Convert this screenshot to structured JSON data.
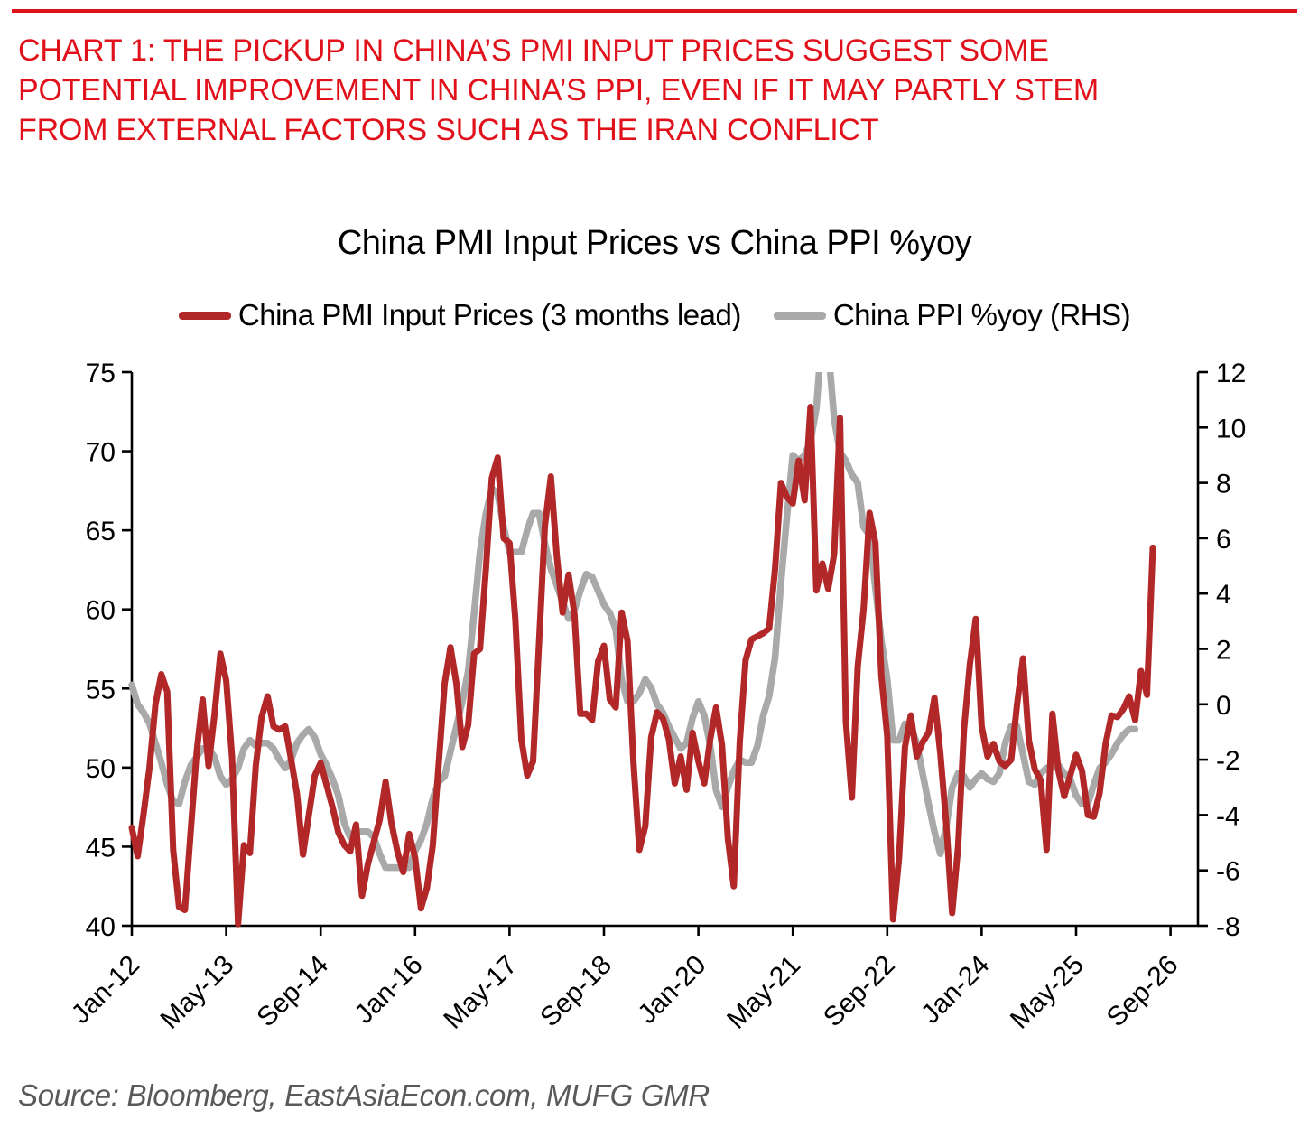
{
  "header": {
    "accent_color": "#e1111b",
    "headline_lines": [
      "CHART 1: THE PICKUP IN CHINA’S PMI INPUT PRICES SUGGEST SOME",
      "POTENTIAL IMPROVEMENT IN CHINA’S PPI, EVEN IF IT MAY PARTLY STEM",
      "FROM EXTERNAL FACTORS SUCH AS THE IRAN CONFLICT"
    ]
  },
  "chart": {
    "title": "China PMI Input Prices vs China PPI %yoy",
    "legend": [
      {
        "label": "China PMI Input Prices (3 months lead)",
        "color": "#b22828"
      },
      {
        "label": "China PPI %yoy (RHS)",
        "color": "#a9a9a9"
      }
    ]
  },
  "source_note": "Source: Bloomberg, EastAsiaEcon.com, MUFG GMR",
  "chart_data": {
    "type": "line",
    "title": "China PMI Input Prices vs China PPI %yoy",
    "grid": false,
    "legend_position": "top-center",
    "x_start_month": "Jan-2012",
    "x_frequency": "monthly",
    "x_months_per_tick": 16,
    "x_tick_labels": [
      "Jan-12",
      "May-13",
      "Sep-14",
      "Jan-16",
      "May-17",
      "Sep-18",
      "Jan-20",
      "May-21",
      "Sep-22",
      "Jan-24",
      "May-25",
      "Sep-26"
    ],
    "left_axis": {
      "min": 40,
      "max": 75,
      "step": 5,
      "ticks": [
        40,
        45,
        50,
        55,
        60,
        65,
        70,
        75
      ]
    },
    "right_axis": {
      "min": -8,
      "max": 12,
      "step": 2,
      "ticks": [
        -8,
        -6,
        -4,
        -2,
        0,
        2,
        4,
        6,
        8,
        10,
        12
      ]
    },
    "series": [
      {
        "name": "China PMI Input Prices (3 months lead)",
        "axis": "left",
        "color": "#b22828",
        "stroke_width": 7,
        "start_month": "Jan-2012",
        "values": [
          46.2,
          44.4,
          47.1,
          50.0,
          54.0,
          55.9,
          54.8,
          44.8,
          41.2,
          41.0,
          46.1,
          51.0,
          54.3,
          50.1,
          53.3,
          57.2,
          55.5,
          50.6,
          40.1,
          45.1,
          44.6,
          50.1,
          53.2,
          54.5,
          52.6,
          52.4,
          52.6,
          50.5,
          48.3,
          44.5,
          47.0,
          49.5,
          50.3,
          48.9,
          47.5,
          45.9,
          45.1,
          44.7,
          46.4,
          41.9,
          43.9,
          45.3,
          46.7,
          49.1,
          46.5,
          44.7,
          43.4,
          45.8,
          44.3,
          41.1,
          42.4,
          45.1,
          50.2,
          55.3,
          57.6,
          55.3,
          51.3,
          52.7,
          57.2,
          57.5,
          62.6,
          68.3,
          69.6,
          64.5,
          64.2,
          59.3,
          51.8,
          49.5,
          50.4,
          57.9,
          65.3,
          68.4,
          63.4,
          59.8,
          62.2,
          59.7,
          53.4,
          53.4,
          53.0,
          56.7,
          57.7,
          54.3,
          53.8,
          59.8,
          58.0,
          50.3,
          44.8,
          46.3,
          51.9,
          53.5,
          53.1,
          51.8,
          49.0,
          50.7,
          48.6,
          52.2,
          50.4,
          49.0,
          51.8,
          53.8,
          51.4,
          45.5,
          42.5,
          51.6,
          56.8,
          58.1,
          58.3,
          58.5,
          58.8,
          62.6,
          68.0,
          67.1,
          66.7,
          69.4,
          66.9,
          72.8,
          61.2,
          62.9,
          61.3,
          63.5,
          72.1,
          52.9,
          48.1,
          56.4,
          60.0,
          66.1,
          64.2,
          55.8,
          52.0,
          40.4,
          44.3,
          51.3,
          53.3,
          50.7,
          51.6,
          52.2,
          54.4,
          50.9,
          46.4,
          40.8,
          45.0,
          52.4,
          56.5,
          59.4,
          52.6,
          50.7,
          51.5,
          50.4,
          50.1,
          50.5,
          54.0,
          56.9,
          51.7,
          49.9,
          49.2,
          44.8,
          53.4,
          49.8,
          48.2,
          49.5,
          50.8,
          49.8,
          47.0,
          46.9,
          48.4,
          51.5,
          53.3,
          53.2,
          53.7,
          54.5,
          53.0,
          56.1,
          54.6,
          63.9
        ]
      },
      {
        "name": "China PPI %yoy (RHS)",
        "axis": "right",
        "color": "#a9a9a9",
        "stroke_width": 7.5,
        "start_month": "Jan-2012",
        "values": [
          0.7,
          0.0,
          -0.3,
          -0.7,
          -1.4,
          -2.1,
          -2.9,
          -3.5,
          -3.6,
          -2.8,
          -2.2,
          -1.9,
          -1.6,
          -1.6,
          -1.9,
          -2.6,
          -2.9,
          -2.7,
          -2.3,
          -1.6,
          -1.3,
          -1.5,
          -1.4,
          -1.4,
          -1.6,
          -2.0,
          -2.3,
          -2.0,
          -1.4,
          -1.1,
          -0.9,
          -1.2,
          -1.8,
          -2.2,
          -2.7,
          -3.3,
          -4.3,
          -4.8,
          -4.6,
          -4.6,
          -4.6,
          -4.8,
          -5.4,
          -5.9,
          -5.9,
          -5.9,
          -5.9,
          -5.9,
          -5.3,
          -4.9,
          -4.3,
          -3.4,
          -2.8,
          -2.6,
          -1.7,
          -0.8,
          0.1,
          1.2,
          3.3,
          5.5,
          6.9,
          7.8,
          7.6,
          6.4,
          5.5,
          5.5,
          5.5,
          6.3,
          6.9,
          6.9,
          5.8,
          4.9,
          4.3,
          3.7,
          3.1,
          3.4,
          4.1,
          4.7,
          4.6,
          4.1,
          3.6,
          3.3,
          2.7,
          0.9,
          0.1,
          0.1,
          0.4,
          0.9,
          0.6,
          0.0,
          -0.3,
          -0.8,
          -1.2,
          -1.6,
          -1.4,
          -0.5,
          0.1,
          -0.4,
          -1.5,
          -3.1,
          -3.7,
          -3.0,
          -2.4,
          -2.0,
          -2.1,
          -2.1,
          -1.5,
          -0.4,
          0.3,
          1.7,
          4.4,
          6.8,
          9.0,
          8.8,
          9.0,
          9.5,
          10.7,
          13.5,
          12.9,
          10.3,
          9.1,
          8.8,
          8.3,
          8.0,
          6.4,
          6.1,
          4.2,
          2.3,
          0.9,
          -1.3,
          -1.3,
          -0.7,
          -0.8,
          -1.4,
          -2.5,
          -3.6,
          -4.6,
          -5.4,
          -4.4,
          -3.0,
          -2.5,
          -2.6,
          -3.0,
          -2.7,
          -2.5,
          -2.7,
          -2.8,
          -2.5,
          -1.4,
          -0.8,
          -0.8,
          -1.8,
          -2.8,
          -2.9,
          -2.5,
          -2.3,
          -2.3,
          -2.2,
          -2.5,
          -2.7,
          -3.3,
          -3.6,
          -3.6,
          -2.9,
          -2.3,
          -2.1,
          -1.8,
          -1.4,
          -1.1,
          -0.9,
          -0.9
        ]
      }
    ]
  }
}
